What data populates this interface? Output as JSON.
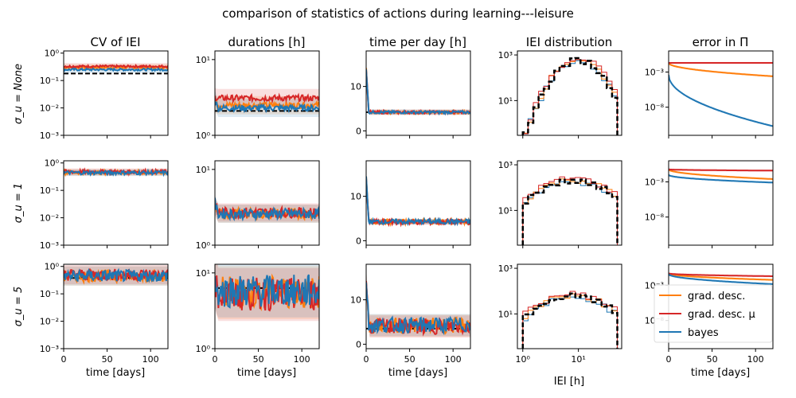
{
  "figure": {
    "suptitle": "comparison of statistics of actions during learning---leisure",
    "column_titles": [
      "CV of IEI",
      "durations [h]",
      "time per day [h]",
      "IEI distribution",
      "error in Π"
    ],
    "row_labels": [
      "σ_u = None",
      "σ_u = 1",
      "σ_u = 5"
    ],
    "time_xlabel": "time [days]",
    "iei_xlabel": "IEI [h]",
    "x_ticks_time": [
      "0",
      "50",
      "100"
    ],
    "x_ticks_iei": [
      "10⁰",
      "10¹"
    ]
  },
  "legend": [
    {
      "name": "grad. desc.",
      "color": "#ff7f0e"
    },
    {
      "name": "grad. desc. μ",
      "color": "#d62728"
    },
    {
      "name": "bayes",
      "color": "#1f77b4"
    }
  ],
  "colors": {
    "grad_desc": "#ff7f0e",
    "grad_desc_mu": "#d62728",
    "bayes": "#1f77b4",
    "target": "#000000"
  },
  "chart_data": [
    {
      "type": "line",
      "panel": "CV of IEI / σ_u=None",
      "yscale": "log",
      "ylim": [
        0.001,
        1.2
      ],
      "xlim": [
        0,
        120
      ],
      "yticks": [
        "10⁻³",
        "10⁻²",
        "10⁻¹",
        "10⁰"
      ],
      "target": 0.18,
      "series": [
        {
          "name": "grad. desc.",
          "value": 0.3
        },
        {
          "name": "grad. desc. μ",
          "value": 0.33
        },
        {
          "name": "bayes",
          "value": 0.25
        }
      ]
    },
    {
      "type": "line",
      "panel": "durations [h] / σ_u=None",
      "yscale": "log",
      "ylim": [
        1,
        13
      ],
      "xlim": [
        0,
        120
      ],
      "yticks": [
        "10⁰",
        "10¹"
      ],
      "target": 2.1,
      "series": [
        {
          "name": "grad. desc.",
          "start": 2.6,
          "value": 2.5
        },
        {
          "name": "grad. desc. μ",
          "start": 3.2,
          "value": 3.1
        },
        {
          "name": "bayes",
          "start": 3.0,
          "value": 2.3
        }
      ]
    },
    {
      "type": "line",
      "panel": "time per day [h] / σ_u=None",
      "yscale": "linear",
      "ylim": [
        -1,
        18
      ],
      "xlim": [
        0,
        120
      ],
      "yticks": [
        "0",
        "10"
      ],
      "target": 4.2,
      "series": [
        {
          "name": "grad. desc.",
          "start": 14,
          "value": 4.2
        },
        {
          "name": "grad. desc. μ",
          "start": 14,
          "value": 4.2
        },
        {
          "name": "bayes",
          "start": 14,
          "value": 4.2
        }
      ]
    },
    {
      "type": "histogram",
      "panel": "IEI distribution / σ_u=None",
      "yscale": "log",
      "xscale": "log",
      "ylim": [
        0.3,
        1500
      ],
      "xlim": [
        0.8,
        60
      ],
      "yticks": [
        "10¹",
        "10³"
      ]
    },
    {
      "type": "line",
      "panel": "error in Π / σ_u=None",
      "yscale": "log",
      "ylim": [
        1e-12,
        1
      ],
      "xlim": [
        0,
        120
      ],
      "yticks": [
        "10⁻³",
        "10⁻⁸"
      ],
      "series": [
        {
          "name": "grad. desc.",
          "start": 0.02,
          "value": 0.00025
        },
        {
          "name": "grad. desc. μ",
          "start": 0.02,
          "value": 0.02
        },
        {
          "name": "bayes",
          "start": 0.0004,
          "value": 2e-11
        }
      ]
    },
    {
      "type": "line",
      "panel": "CV of IEI / σ_u=1",
      "yscale": "log",
      "ylim": [
        0.001,
        1.2
      ],
      "xlim": [
        0,
        120
      ],
      "yticks": [
        "10⁻³",
        "10⁻²",
        "10⁻¹",
        "10⁰"
      ],
      "series": [
        {
          "name": "grad. desc.",
          "value": 0.45
        },
        {
          "name": "grad. desc. μ",
          "value": 0.48
        },
        {
          "name": "bayes",
          "value": 0.44
        }
      ]
    },
    {
      "type": "line",
      "panel": "durations [h] / σ_u=1",
      "yscale": "log",
      "ylim": [
        1,
        13
      ],
      "xlim": [
        0,
        120
      ],
      "yticks": [
        "10⁰",
        "10¹"
      ],
      "series": [
        {
          "name": "grad. desc.",
          "start": 3.4,
          "value": 2.6
        },
        {
          "name": "grad. desc. μ",
          "start": 3.4,
          "value": 2.7
        },
        {
          "name": "bayes",
          "start": 3.6,
          "value": 2.6
        }
      ]
    },
    {
      "type": "line",
      "panel": "time per day [h] / σ_u=1",
      "yscale": "linear",
      "ylim": [
        -1,
        18
      ],
      "xlim": [
        0,
        120
      ],
      "yticks": [
        "0",
        "10"
      ],
      "series": [
        {
          "name": "grad. desc.",
          "start": 14,
          "value": 4.3
        },
        {
          "name": "grad. desc. μ",
          "start": 14,
          "value": 4.2
        },
        {
          "name": "bayes",
          "start": 14,
          "value": 4.3
        }
      ]
    },
    {
      "type": "histogram",
      "panel": "IEI distribution / σ_u=1",
      "yscale": "log",
      "xscale": "log",
      "ylim": [
        0.3,
        1500
      ],
      "xlim": [
        0.8,
        60
      ],
      "yticks": [
        "10¹",
        "10³"
      ]
    },
    {
      "type": "line",
      "panel": "error in Π / σ_u=1",
      "yscale": "log",
      "ylim": [
        1e-12,
        1
      ],
      "xlim": [
        0,
        120
      ],
      "yticks": [
        "10⁻³",
        "10⁻⁸"
      ],
      "series": [
        {
          "name": "grad. desc.",
          "start": 0.06,
          "value": 0.0025
        },
        {
          "name": "grad. desc. μ",
          "start": 0.06,
          "value": 0.04
        },
        {
          "name": "bayes",
          "start": 0.01,
          "value": 0.0008
        }
      ]
    },
    {
      "type": "line",
      "panel": "CV of IEI / σ_u=5",
      "yscale": "log",
      "ylim": [
        0.001,
        1.2
      ],
      "xlim": [
        0,
        120
      ],
      "yticks": [
        "10⁻³",
        "10⁻²",
        "10⁻¹",
        "10⁰"
      ],
      "target": 0.38,
      "series": [
        {
          "name": "grad. desc.",
          "value": 0.45
        },
        {
          "name": "grad. desc. μ",
          "value": 0.5
        },
        {
          "name": "bayes",
          "value": 0.45
        }
      ]
    },
    {
      "type": "line",
      "panel": "durations [h] / σ_u=5",
      "yscale": "log",
      "ylim": [
        1,
        13
      ],
      "xlim": [
        0,
        120
      ],
      "yticks": [
        "10⁰",
        "10¹"
      ],
      "target": 6.3,
      "series": [
        {
          "name": "grad. desc.",
          "start": 8,
          "value": 5.5
        },
        {
          "name": "grad. desc. μ",
          "start": 8,
          "value": 5.2
        },
        {
          "name": "bayes",
          "start": 8,
          "value": 5.8
        }
      ]
    },
    {
      "type": "line",
      "panel": "time per day [h] / σ_u=5",
      "yscale": "linear",
      "ylim": [
        -1,
        18
      ],
      "xlim": [
        0,
        120
      ],
      "yticks": [
        "0",
        "10"
      ],
      "target": 3.5,
      "series": [
        {
          "name": "grad. desc.",
          "start": 15,
          "value": 4.2
        },
        {
          "name": "grad. desc. μ",
          "start": 15,
          "value": 4.0
        },
        {
          "name": "bayes",
          "start": 15,
          "value": 4.3
        }
      ]
    },
    {
      "type": "histogram",
      "panel": "IEI distribution / σ_u=5",
      "yscale": "log",
      "xscale": "log",
      "ylim": [
        0.3,
        1500
      ],
      "xlim": [
        0.8,
        60
      ],
      "yticks": [
        "10¹",
        "10³"
      ]
    },
    {
      "type": "line",
      "panel": "error in Π / σ_u=5",
      "yscale": "log",
      "ylim": [
        1e-12,
        1
      ],
      "xlim": [
        0,
        120
      ],
      "yticks": [
        "10⁻³",
        "10⁻⁸"
      ],
      "series": [
        {
          "name": "grad. desc.",
          "start": 0.05,
          "value": 0.006
        },
        {
          "name": "grad. desc. μ",
          "start": 0.05,
          "value": 0.02
        },
        {
          "name": "bayes",
          "start": 0.04,
          "value": 0.0015
        }
      ]
    }
  ]
}
